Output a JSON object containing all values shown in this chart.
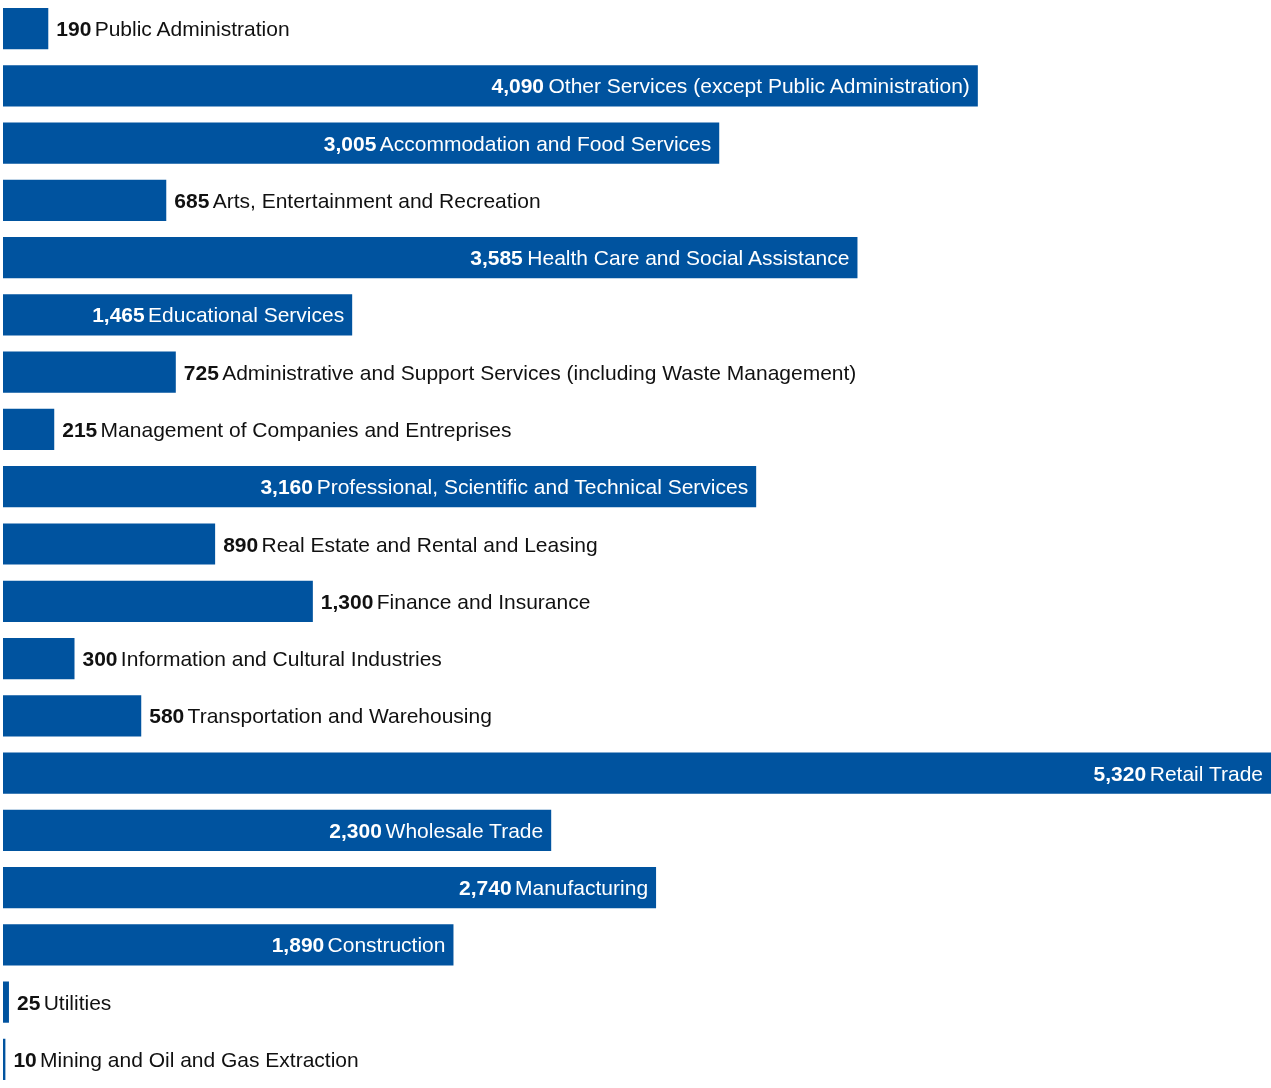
{
  "chart_data": {
    "type": "bar",
    "orientation": "horizontal",
    "color": "#00539f",
    "value_labels": [
      "190",
      "4,090",
      "3,005",
      "685",
      "3,585",
      "1,465",
      "725",
      "215",
      "3,160",
      "890",
      "1,300",
      "300",
      "580",
      "5,320",
      "2,300",
      "2,740",
      "1,890",
      "25",
      "10"
    ],
    "categories": [
      "Public Administration",
      "Other Services (except Public Administration)",
      "Accommodation and Food Services",
      "Arts, Entertainment and Recreation",
      "Health Care and Social Assistance",
      "Educational Services",
      "Administrative and Support Services (including Waste Management)",
      "Management of Companies and Entreprises",
      "Professional, Scientific and Technical Services",
      "Real Estate and Rental and Leasing",
      "Finance and Insurance",
      "Information and Cultural Industries",
      "Transportation and Warehousing",
      "Retail Trade",
      "Wholesale Trade",
      "Manufacturing",
      "Construction",
      "Utilities",
      "Mining and Oil and Gas Extraction"
    ],
    "values": [
      190,
      4090,
      3005,
      685,
      3585,
      1465,
      725,
      215,
      3160,
      890,
      1300,
      300,
      580,
      5320,
      2300,
      2740,
      1890,
      25,
      10
    ]
  }
}
